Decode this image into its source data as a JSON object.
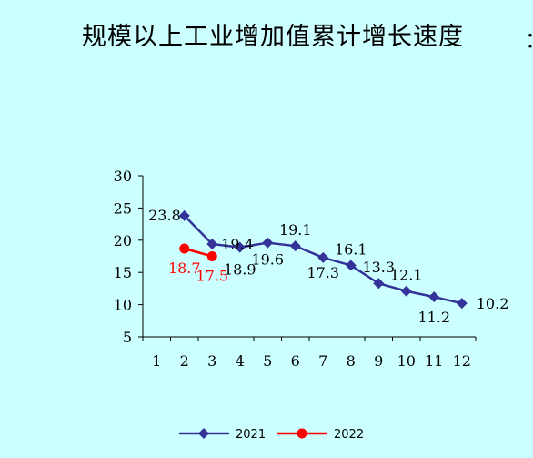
{
  "chart_data": {
    "type": "line",
    "title": "规模以上工业增加值累计增长速度",
    "x": [
      1,
      2,
      3,
      4,
      5,
      6,
      7,
      8,
      9,
      10,
      11,
      12
    ],
    "ylim": [
      5,
      30
    ],
    "yticks": [
      5,
      10,
      15,
      20,
      25,
      30
    ],
    "grid": false,
    "legend_position": "bottom",
    "series": [
      {
        "name": "2021",
        "color": "#333399",
        "marker": "diamond",
        "x": [
          2,
          3,
          4,
          5,
          6,
          7,
          8,
          9,
          10,
          11,
          12
        ],
        "values": [
          23.8,
          19.4,
          18.9,
          19.6,
          19.1,
          17.3,
          16.1,
          13.3,
          12.1,
          11.2,
          10.2
        ],
        "labels": [
          "23.8",
          "19.4",
          "18.9",
          "19.6",
          "19.1",
          "17.3",
          "16.1",
          "13.3",
          "12.1",
          "11.2",
          "10.2"
        ]
      },
      {
        "name": "2022",
        "color": "#ff0000",
        "marker": "circle",
        "x": [
          2,
          3
        ],
        "values": [
          18.7,
          17.5
        ],
        "labels": [
          "18.7",
          "17.5"
        ]
      }
    ]
  },
  "edge_text": "："
}
